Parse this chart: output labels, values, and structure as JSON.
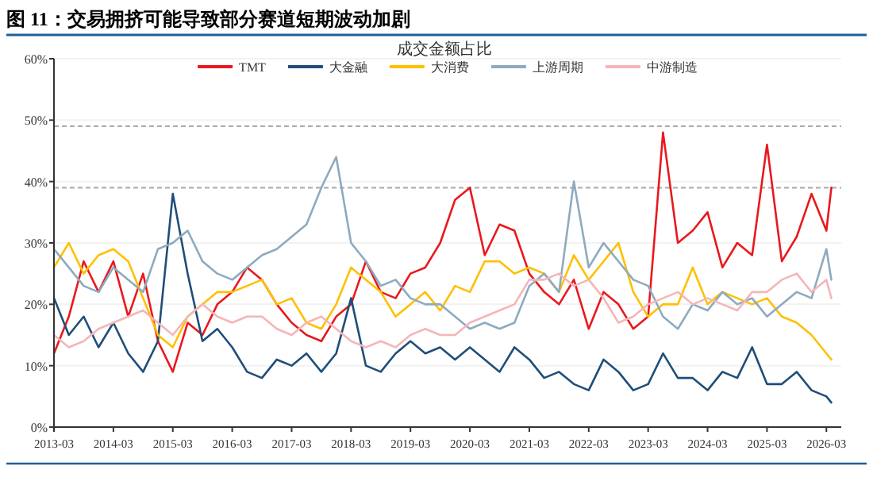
{
  "chart_data": {
    "type": "line",
    "title": "图 11：交易拥挤可能导致部分赛道短期波动加剧",
    "subtitle": "成交金额占比",
    "x": [
      "2013-03",
      "2013-06",
      "2013-09",
      "2013-12",
      "2014-03",
      "2014-06",
      "2014-09",
      "2014-12",
      "2015-03",
      "2015-06",
      "2015-09",
      "2015-12",
      "2016-03",
      "2016-06",
      "2016-09",
      "2016-12",
      "2017-03",
      "2017-06",
      "2017-09",
      "2017-12",
      "2018-03",
      "2018-06",
      "2018-09",
      "2018-12",
      "2019-03",
      "2019-06",
      "2019-09",
      "2019-12",
      "2020-03",
      "2020-06",
      "2020-09",
      "2020-12",
      "2021-03",
      "2021-06",
      "2021-09",
      "2021-12",
      "2022-03",
      "2022-06",
      "2022-09",
      "2022-12",
      "2023-03",
      "2023-06",
      "2023-09",
      "2023-12",
      "2024-03",
      "2024-06",
      "2024-09",
      "2024-12",
      "2025-03",
      "2025-06",
      "2025-09",
      "2025-12",
      "2026-03",
      "2026-04"
    ],
    "series": [
      {
        "name": "TMT",
        "color": "#e8191e",
        "values": [
          12,
          18,
          27,
          22,
          27,
          18,
          25,
          14,
          9,
          17,
          15,
          20,
          22,
          26,
          24,
          20,
          17,
          15,
          14,
          18,
          20,
          27,
          22,
          21,
          25,
          26,
          30,
          37,
          39,
          28,
          33,
          32,
          25,
          22,
          20,
          24,
          16,
          22,
          20,
          16,
          18,
          48,
          30,
          32,
          35,
          26,
          30,
          28,
          46,
          27,
          31,
          38,
          32,
          39
        ]
      },
      {
        "name": "大金融",
        "color": "#1f4e79",
        "values": [
          21,
          15,
          18,
          13,
          17,
          12,
          9,
          14,
          38,
          25,
          14,
          16,
          13,
          9,
          8,
          11,
          10,
          12,
          9,
          12,
          21,
          10,
          9,
          12,
          14,
          12,
          13,
          11,
          13,
          11,
          9,
          13,
          11,
          8,
          9,
          7,
          6,
          11,
          9,
          6,
          7,
          12,
          8,
          8,
          6,
          9,
          8,
          13,
          7,
          7,
          9,
          6,
          5,
          4
        ]
      },
      {
        "name": "大消费",
        "color": "#ffc000",
        "values": [
          26,
          30,
          25,
          28,
          29,
          27,
          21,
          15,
          13,
          18,
          20,
          22,
          22,
          23,
          24,
          20,
          21,
          17,
          16,
          20,
          26,
          24,
          22,
          18,
          20,
          22,
          19,
          23,
          22,
          27,
          27,
          25,
          26,
          25,
          22,
          28,
          24,
          27,
          30,
          22,
          18,
          20,
          20,
          26,
          20,
          22,
          21,
          20,
          21,
          18,
          17,
          15,
          12,
          11
        ]
      },
      {
        "name": "上游周期",
        "color": "#8eaabf",
        "values": [
          29,
          26,
          23,
          22,
          26,
          24,
          22,
          29,
          30,
          32,
          27,
          25,
          24,
          26,
          28,
          29,
          31,
          33,
          39,
          44,
          30,
          27,
          23,
          24,
          21,
          20,
          20,
          18,
          16,
          17,
          16,
          17,
          23,
          25,
          22,
          40,
          26,
          30,
          27,
          24,
          23,
          18,
          16,
          20,
          19,
          22,
          20,
          21,
          18,
          20,
          22,
          21,
          29,
          24
        ]
      },
      {
        "name": "中游制造",
        "color": "#f4b6b8",
        "values": [
          15,
          13,
          14,
          16,
          17,
          18,
          19,
          17,
          15,
          18,
          20,
          18,
          17,
          18,
          18,
          16,
          15,
          17,
          18,
          16,
          14,
          13,
          14,
          13,
          15,
          16,
          15,
          15,
          17,
          18,
          19,
          20,
          24,
          24,
          25,
          23,
          24,
          21,
          17,
          18,
          20,
          21,
          22,
          20,
          21,
          20,
          19,
          22,
          22,
          24,
          25,
          22,
          24,
          21
        ]
      }
    ],
    "xlim": [
      "2013-03",
      "2026-06"
    ],
    "xticks": [
      "2013-03",
      "2014-03",
      "2015-03",
      "2016-03",
      "2017-03",
      "2018-03",
      "2019-03",
      "2020-03",
      "2021-03",
      "2022-03",
      "2023-03",
      "2024-03",
      "2025-03",
      "2026-03"
    ],
    "ylim": [
      0,
      60
    ],
    "yticks": [
      {
        "value": 0,
        "label": "0%"
      },
      {
        "value": 10,
        "label": "10%"
      },
      {
        "value": 20,
        "label": "20%"
      },
      {
        "value": 30,
        "label": "30%"
      },
      {
        "value": 40,
        "label": "40%"
      },
      {
        "value": 50,
        "label": "50%"
      },
      {
        "value": 60,
        "label": "60%"
      }
    ],
    "ref_lines": [
      {
        "axis": "y",
        "value": 49,
        "color": "#aaaaaa",
        "line_style": "dashed"
      },
      {
        "axis": "y",
        "value": 39,
        "color": "#aaaaaa",
        "line_style": "dashed"
      }
    ],
    "grid": "y",
    "legend": "top"
  }
}
